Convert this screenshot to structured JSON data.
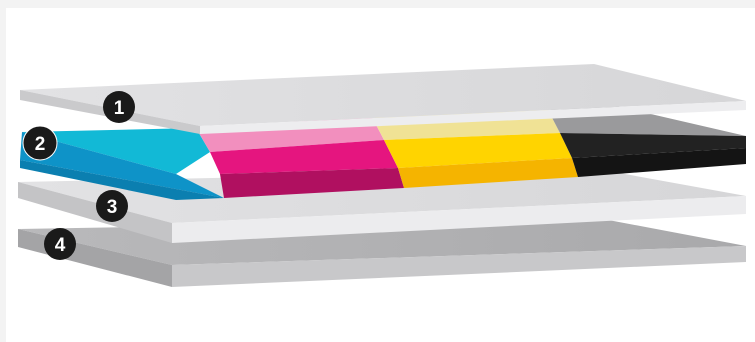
{
  "diagram": {
    "layers": [
      {
        "number": "1",
        "tone": "light-gray"
      },
      {
        "number": "2",
        "tone": "cmyk-color"
      },
      {
        "number": "3",
        "tone": "light-gray"
      },
      {
        "number": "4",
        "tone": "dark-gray"
      }
    ],
    "colors": {
      "cyan": "#1a9bd6",
      "magenta": "#e6007e",
      "yellow": "#ffd200",
      "black": "#1e1e1e",
      "gray_light": "#dcdcde",
      "gray_dark": "#b3b3b5",
      "badge": "#1a1a1a"
    }
  }
}
